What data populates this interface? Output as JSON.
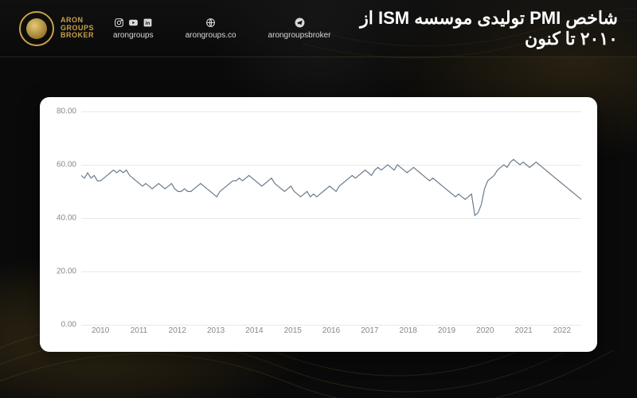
{
  "header": {
    "brand_line1": "ARON",
    "brand_line2": "GROUPS",
    "brand_line3": "BROKER",
    "socials": [
      {
        "icons": [
          "instagram",
          "youtube",
          "linkedin"
        ],
        "label": "arongroups"
      },
      {
        "icons": [
          "globe"
        ],
        "label": "arongroups.co"
      },
      {
        "icons": [
          "telegram"
        ],
        "label": "arongroupsbroker"
      }
    ],
    "title": "شاخص PMI تولیدی موسسه ISM از ۲۰۱۰ تا کنون"
  },
  "chart": {
    "type": "line",
    "background_color": "#ffffff",
    "grid_color": "#e8e8e8",
    "line_color": "#6b7b8c",
    "line_width": 1.2,
    "axis_label_color": "#888888",
    "axis_label_fontsize": 10,
    "ylim": [
      0,
      80
    ],
    "ytick_step": 20,
    "y_ticks": [
      "0.00",
      "20.00",
      "40.00",
      "60.00",
      "80.00"
    ],
    "x_labels": [
      "2010",
      "2011",
      "2012",
      "2013",
      "2014",
      "2015",
      "2016",
      "2017",
      "2018",
      "2019",
      "2020",
      "2021",
      "2022"
    ],
    "values": [
      56,
      55,
      57,
      55,
      56,
      54,
      54,
      55,
      56,
      57,
      58,
      57,
      58,
      57,
      58,
      56,
      55,
      54,
      53,
      52,
      53,
      52,
      51,
      52,
      53,
      52,
      51,
      52,
      53,
      51,
      50,
      50,
      51,
      50,
      50,
      51,
      52,
      53,
      52,
      51,
      50,
      49,
      48,
      50,
      51,
      52,
      53,
      54,
      54,
      55,
      54,
      55,
      56,
      55,
      54,
      53,
      52,
      53,
      54,
      55,
      53,
      52,
      51,
      50,
      51,
      52,
      50,
      49,
      48,
      49,
      50,
      48,
      49,
      48,
      49,
      50,
      51,
      52,
      51,
      50,
      52,
      53,
      54,
      55,
      56,
      55,
      56,
      57,
      58,
      57,
      56,
      58,
      59,
      58,
      59,
      60,
      59,
      58,
      60,
      59,
      58,
      57,
      58,
      59,
      58,
      57,
      56,
      55,
      54,
      55,
      54,
      53,
      52,
      51,
      50,
      49,
      48,
      49,
      48,
      47,
      48,
      49,
      41,
      42,
      45,
      51,
      54,
      55,
      56,
      58,
      59,
      60,
      59,
      61,
      62,
      61,
      60,
      61,
      60,
      59,
      60,
      61,
      60,
      59,
      58,
      57,
      56,
      55,
      54,
      53,
      52,
      51,
      50,
      49,
      48,
      47
    ]
  },
  "theme": {
    "page_bg": "#0a0a0a",
    "accent": "#c9a14a",
    "text_light": "#ffffff"
  }
}
